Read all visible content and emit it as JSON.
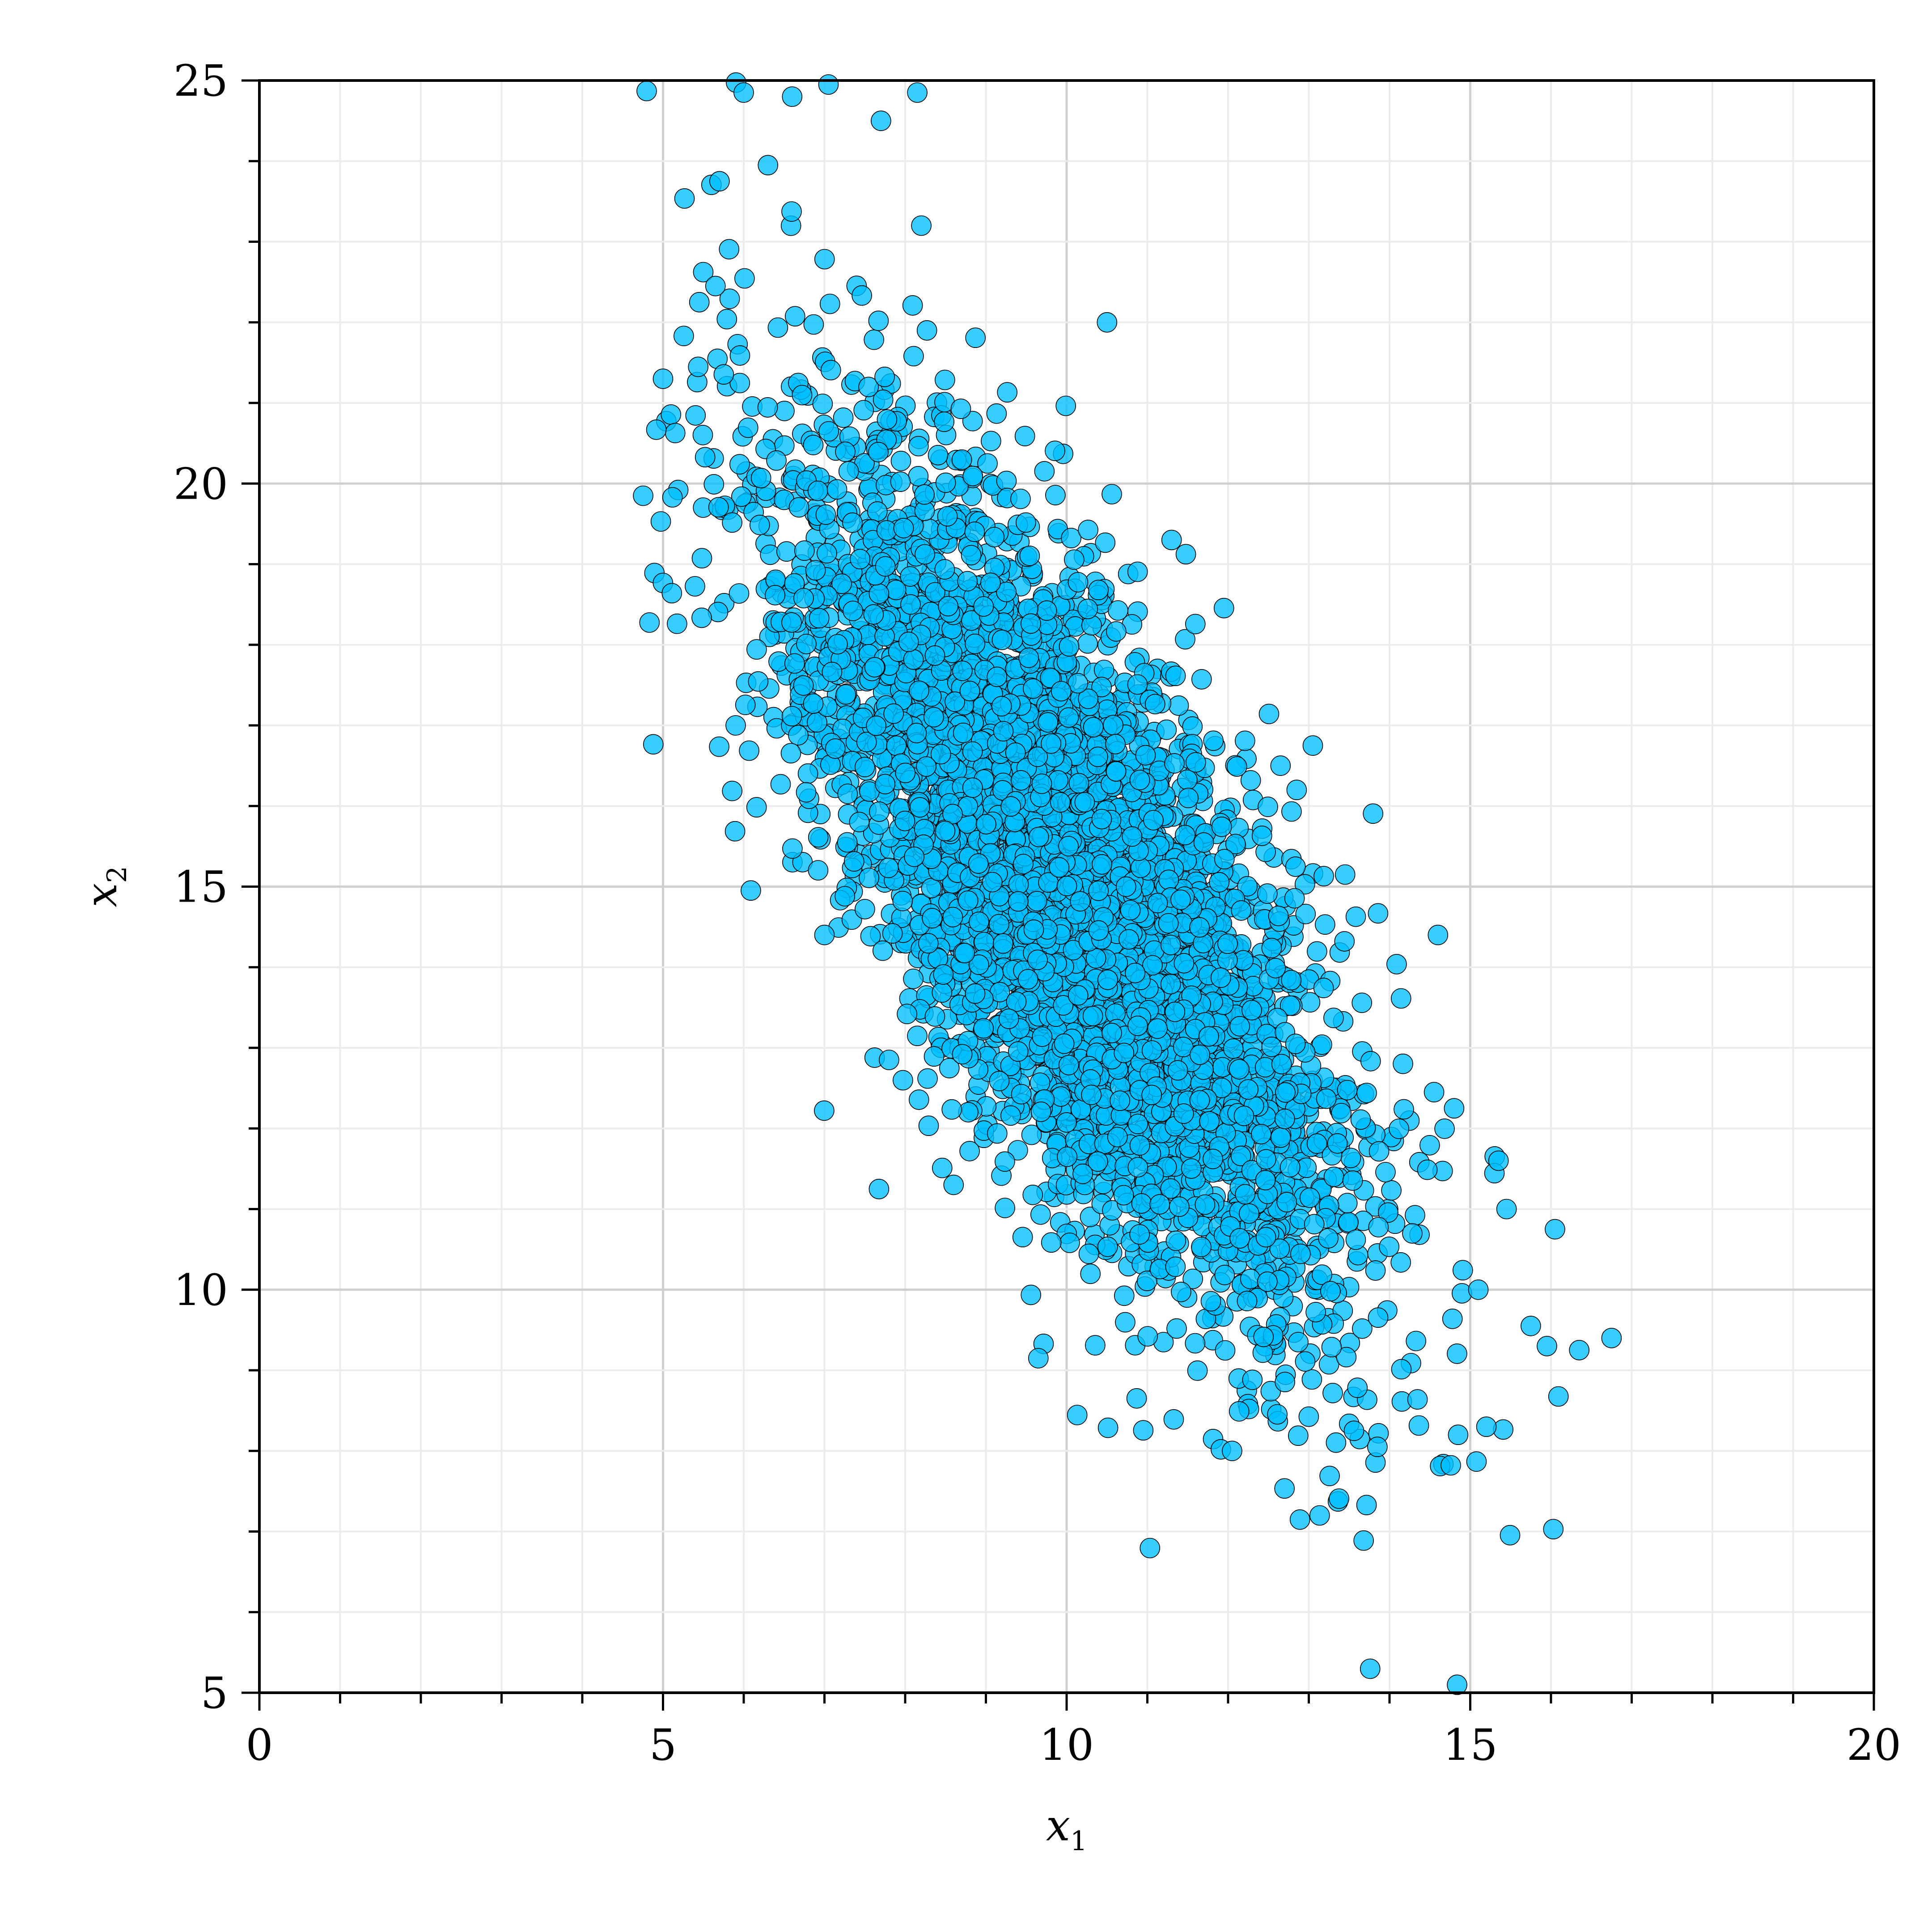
{
  "chart_data": {
    "type": "scatter",
    "title": "",
    "xlabel": "x",
    "xlabel_subscript": "1",
    "ylabel": "x",
    "ylabel_subscript": "2",
    "xlim": [
      0,
      20
    ],
    "ylim": [
      5,
      25
    ],
    "x_ticks": [
      0,
      5,
      10,
      15,
      20
    ],
    "y_ticks": [
      5,
      10,
      15,
      20,
      25
    ],
    "x_minor_step": 1,
    "y_minor_step": 1,
    "grid": true,
    "legend": "none",
    "marker_color": "#00BFFF",
    "marker_edge_color": "#000000",
    "series": [
      {
        "distribution": "bivariate-normal",
        "n_points": 5000,
        "mean": [
          10,
          15
        ],
        "std": [
          1.7,
          2.6
        ],
        "correlation": -0.72,
        "outliers": [
          {
            "x": 5.0,
            "y": 21.3
          },
          {
            "x": 6.0,
            "y": 24.85
          },
          {
            "x": 6.6,
            "y": 24.8
          },
          {
            "x": 7.05,
            "y": 24.95
          },
          {
            "x": 8.15,
            "y": 24.85
          },
          {
            "x": 7.7,
            "y": 24.5
          },
          {
            "x": 5.7,
            "y": 23.75
          },
          {
            "x": 6.3,
            "y": 23.95
          },
          {
            "x": 5.45,
            "y": 22.25
          },
          {
            "x": 5.65,
            "y": 22.45
          },
          {
            "x": 5.9,
            "y": 17.0
          },
          {
            "x": 8.2,
            "y": 23.2
          },
          {
            "x": 10.5,
            "y": 22.0
          },
          {
            "x": 9.65,
            "y": 9.15
          },
          {
            "x": 12.05,
            "y": 8.0
          },
          {
            "x": 13.85,
            "y": 8.05
          },
          {
            "x": 14.85,
            "y": 8.2
          },
          {
            "x": 15.2,
            "y": 8.3
          },
          {
            "x": 16.75,
            "y": 9.4
          },
          {
            "x": 16.35,
            "y": 9.25
          },
          {
            "x": 15.95,
            "y": 9.3
          },
          {
            "x": 16.05,
            "y": 10.75
          },
          {
            "x": 15.75,
            "y": 9.55
          },
          {
            "x": 15.45,
            "y": 11.0
          },
          {
            "x": 13.45,
            "y": 15.15
          },
          {
            "x": 14.6,
            "y": 14.4
          },
          {
            "x": 13.05,
            "y": 16.75
          },
          {
            "x": 12.65,
            "y": 16.5
          },
          {
            "x": 12.85,
            "y": 16.2
          },
          {
            "x": 7.8,
            "y": 12.85
          },
          {
            "x": 8.6,
            "y": 11.3
          },
          {
            "x": 7.0,
            "y": 14.4
          },
          {
            "x": 11.3,
            "y": 19.3
          },
          {
            "x": 15.35,
            "y": 11.6
          },
          {
            "x": 14.8,
            "y": 12.25
          },
          {
            "x": 15.1,
            "y": 10.0
          }
        ]
      }
    ]
  }
}
